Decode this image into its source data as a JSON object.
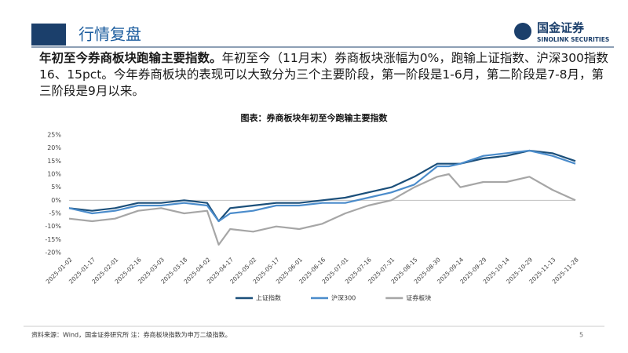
{
  "header": {
    "title": "行情复盘",
    "logo_cn": "国金证券",
    "logo_en": "SINOLINK SECURITIES"
  },
  "paragraph": {
    "bold": "年初至今券商板块跑输主要指数。",
    "text": "年初至今（11月末）券商板块涨幅为0%，跑输上证指数、沪深300指数16、15pct。今年券商板块的表现可以大致分为三个主要阶段，第一阶段是1-6月，第二阶段是7-8月，第三阶段是9月以来。"
  },
  "chart_data": {
    "type": "line",
    "title": "图表：券商板块年初至今跑输主要指数",
    "categories": [
      "2025-01-02",
      "2025-01-17",
      "2025-02-01",
      "2025-02-16",
      "2025-03-03",
      "2025-03-18",
      "2025-04-02",
      null,
      "2025-04-17",
      "2025-05-02",
      "2025-05-17",
      "2025-06-01",
      "2025-06-16",
      "2025-07-01",
      "2025-07-16",
      "2025-07-31",
      "2025-08-15",
      "2025-08-30",
      null,
      "2025-09-14",
      "2025-09-29",
      "2025-10-14",
      "2025-10-29",
      "2025-11-13",
      "2025-11-28"
    ],
    "series": [
      {
        "name": "上证指数",
        "color": "#1b4f7a",
        "values": [
          -3,
          -4,
          -3,
          -1,
          -1,
          0,
          -1,
          -8,
          -3,
          -2,
          -1,
          -1,
          0,
          1,
          3,
          5,
          9,
          14,
          14,
          14,
          16,
          17,
          19,
          18,
          15
        ]
      },
      {
        "name": "沪深300",
        "color": "#4b8ccb",
        "values": [
          -3,
          -5,
          -4,
          -2,
          -2,
          -1,
          -2,
          -8,
          -5,
          -4,
          -2,
          -2,
          -1,
          -1,
          1,
          3,
          6,
          13,
          13,
          14,
          17,
          18,
          19,
          17,
          14
        ]
      },
      {
        "name": "证券板块",
        "color": "#a6a6a6",
        "values": [
          -7,
          -8,
          -7,
          -4,
          -3,
          -5,
          -4,
          -17,
          -11,
          -12,
          -10,
          -11,
          -9,
          -5,
          -2,
          0,
          5,
          9,
          10,
          5,
          7,
          7,
          9,
          4,
          0
        ]
      }
    ],
    "ylim": [
      -20,
      25
    ],
    "yticks": [
      {
        "value": -20,
        "label": "-20%"
      },
      {
        "value": -15,
        "label": "-15%"
      },
      {
        "value": -10,
        "label": "-10%"
      },
      {
        "value": -5,
        "label": "-5%"
      },
      {
        "value": 0,
        "label": "0%"
      },
      {
        "value": 5,
        "label": "5%"
      },
      {
        "value": 10,
        "label": "10%"
      },
      {
        "value": 15,
        "label": "15%"
      },
      {
        "value": 20,
        "label": "20%"
      },
      {
        "value": 25,
        "label": "25%"
      }
    ],
    "grid": false,
    "legend": "bottom"
  },
  "footer": {
    "source": "资料来源：Wind，国金证券研究所 注：券商板块指数为申万二级指数。",
    "page": "5"
  }
}
